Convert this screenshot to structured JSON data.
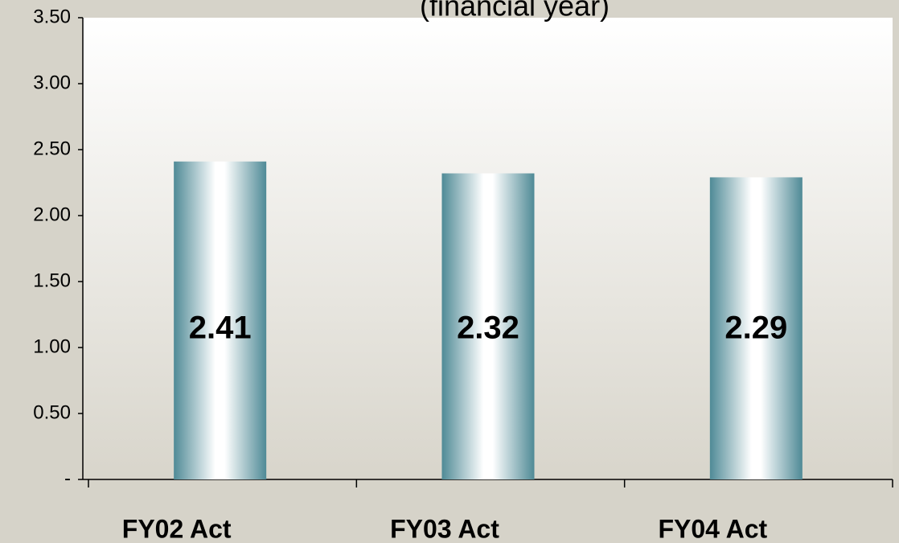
{
  "chart_data": {
    "type": "bar",
    "title": "(financial year)",
    "categories": [
      "FY02 Act",
      "FY03 Act",
      "FY04 Act"
    ],
    "values": [
      2.41,
      2.32,
      2.29
    ],
    "color": "#4f8a96",
    "ylim": [
      0,
      3.5
    ],
    "yticks": [
      {
        "value": 0,
        "label": "-"
      },
      {
        "value": 0.5,
        "label": "0.50"
      },
      {
        "value": 1,
        "label": "1.00"
      },
      {
        "value": 1.5,
        "label": "1.50"
      },
      {
        "value": 2,
        "label": "2.00"
      },
      {
        "value": 2.5,
        "label": "2.50"
      },
      {
        "value": 3,
        "label": "3.00"
      },
      {
        "value": 3.5,
        "label": "3.50"
      }
    ]
  }
}
